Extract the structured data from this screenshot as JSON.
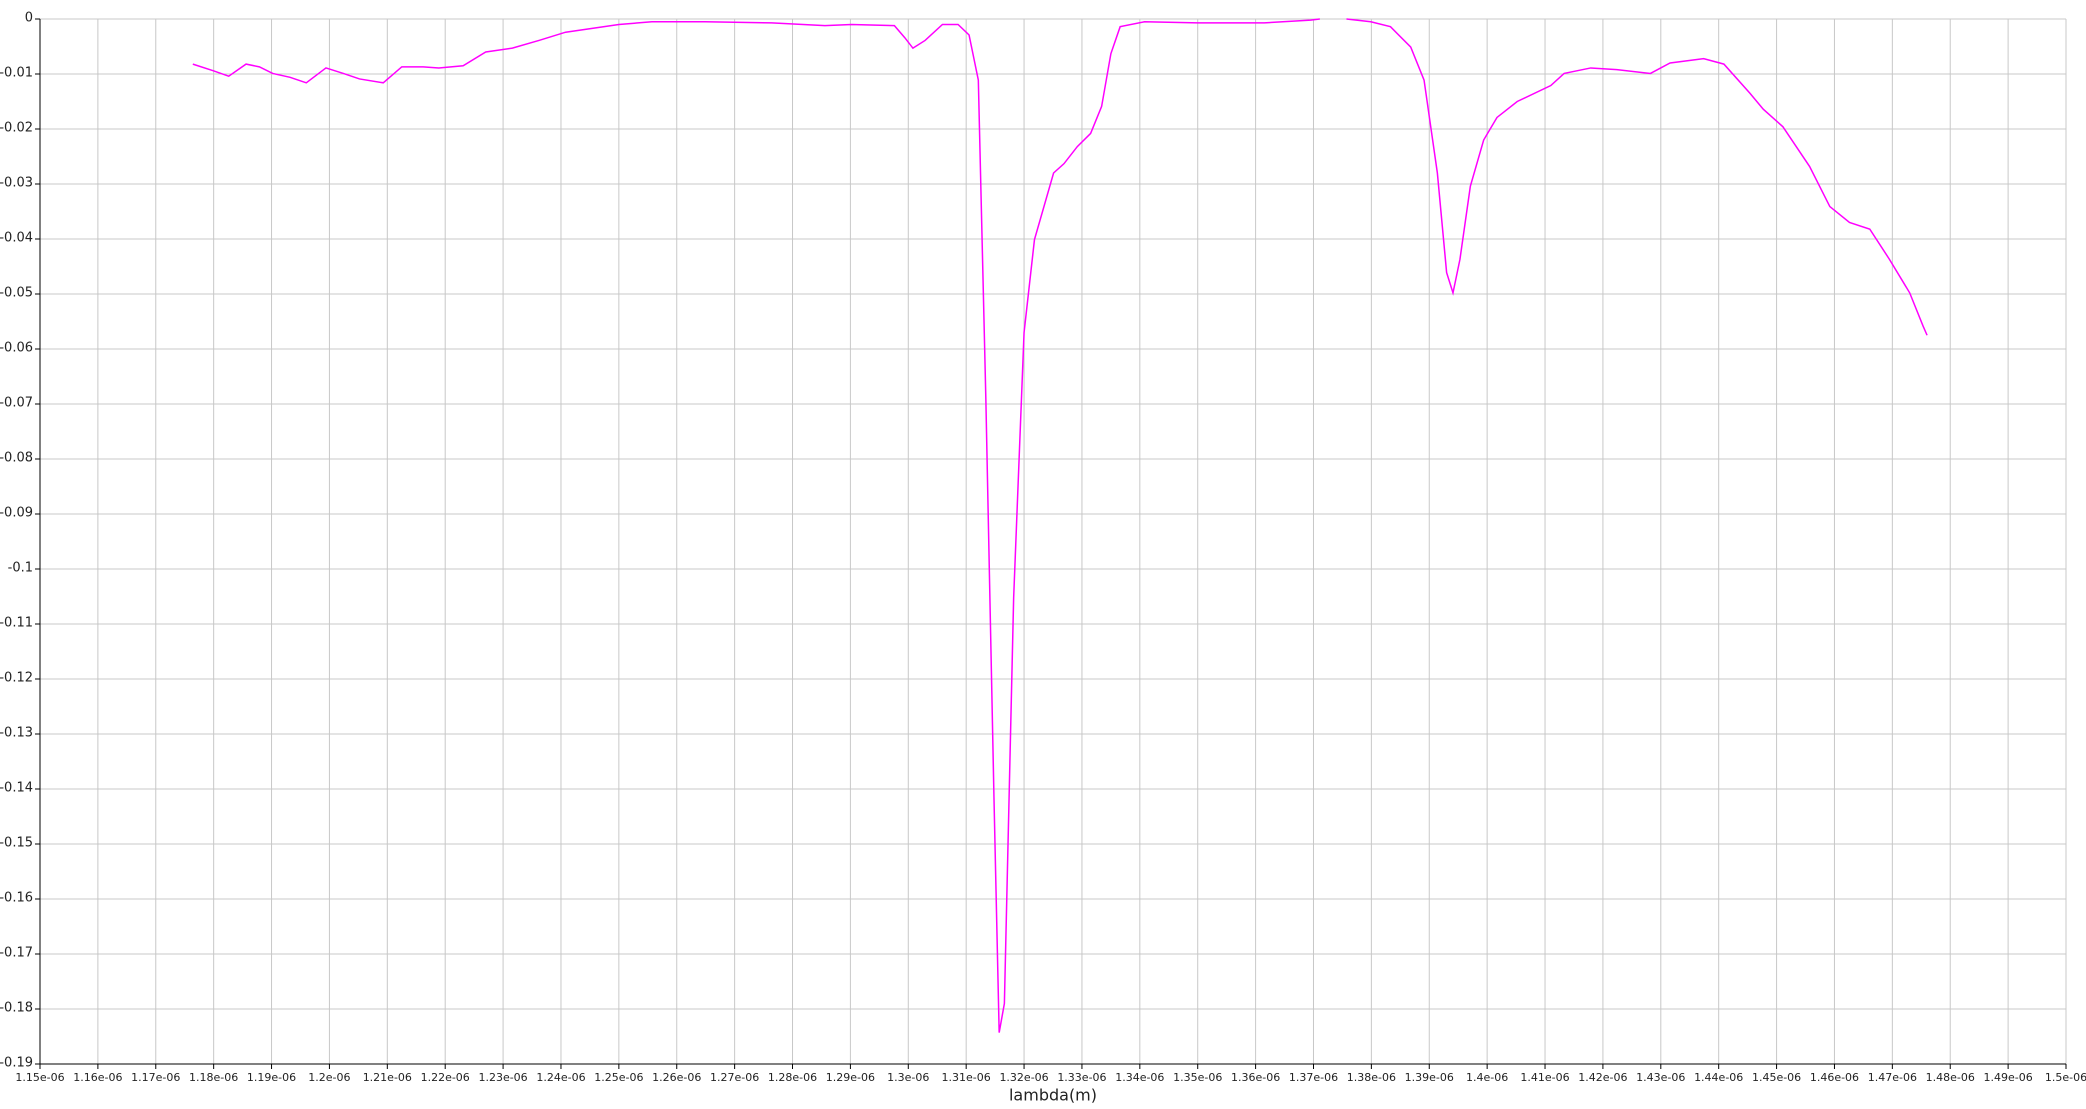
{
  "chart_data": {
    "type": "line",
    "x_label": "lambda(m)",
    "xlim": [
      1.15e-06,
      1.5e-06
    ],
    "ylim": [
      -0.19,
      0
    ],
    "grid": true,
    "xticks": [
      {
        "value": 1.15e-06,
        "label": "1.15e-06"
      },
      {
        "value": 1.16e-06,
        "label": "1.16e-06"
      },
      {
        "value": 1.17e-06,
        "label": "1.17e-06"
      },
      {
        "value": 1.18e-06,
        "label": "1.18e-06"
      },
      {
        "value": 1.19e-06,
        "label": "1.19e-06"
      },
      {
        "value": 1.2e-06,
        "label": "1.2e-06"
      },
      {
        "value": 1.21e-06,
        "label": "1.21e-06"
      },
      {
        "value": 1.22e-06,
        "label": "1.22e-06"
      },
      {
        "value": 1.23e-06,
        "label": "1.23e-06"
      },
      {
        "value": 1.24e-06,
        "label": "1.24e-06"
      },
      {
        "value": 1.25e-06,
        "label": "1.25e-06"
      },
      {
        "value": 1.26e-06,
        "label": "1.26e-06"
      },
      {
        "value": 1.27e-06,
        "label": "1.27e-06"
      },
      {
        "value": 1.28e-06,
        "label": "1.28e-06"
      },
      {
        "value": 1.29e-06,
        "label": "1.29e-06"
      },
      {
        "value": 1.3e-06,
        "label": "1.3e-06"
      },
      {
        "value": 1.31e-06,
        "label": "1.31e-06"
      },
      {
        "value": 1.32e-06,
        "label": "1.32e-06"
      },
      {
        "value": 1.33e-06,
        "label": "1.33e-06"
      },
      {
        "value": 1.34e-06,
        "label": "1.34e-06"
      },
      {
        "value": 1.35e-06,
        "label": "1.35e-06"
      },
      {
        "value": 1.36e-06,
        "label": "1.36e-06"
      },
      {
        "value": 1.37e-06,
        "label": "1.37e-06"
      },
      {
        "value": 1.38e-06,
        "label": "1.38e-06"
      },
      {
        "value": 1.39e-06,
        "label": "1.39e-06"
      },
      {
        "value": 1.4e-06,
        "label": "1.4e-06"
      },
      {
        "value": 1.41e-06,
        "label": "1.41e-06"
      },
      {
        "value": 1.42e-06,
        "label": "1.42e-06"
      },
      {
        "value": 1.43e-06,
        "label": "1.43e-06"
      },
      {
        "value": 1.44e-06,
        "label": "1.44e-06"
      },
      {
        "value": 1.45e-06,
        "label": "1.45e-06"
      },
      {
        "value": 1.46e-06,
        "label": "1.46e-06"
      },
      {
        "value": 1.47e-06,
        "label": "1.47e-06"
      },
      {
        "value": 1.48e-06,
        "label": "1.48e-06"
      },
      {
        "value": 1.49e-06,
        "label": "1.49e-06"
      },
      {
        "value": 1.5e-06,
        "label": "1.5e-06"
      }
    ],
    "yticks": [
      0,
      -0.01,
      -0.02,
      -0.03,
      -0.04,
      -0.05,
      -0.06,
      -0.07,
      -0.08,
      -0.09,
      -0.1,
      -0.11,
      -0.12,
      -0.13,
      -0.14,
      -0.15,
      -0.16,
      -0.17,
      -0.18,
      -0.19
    ],
    "series": [
      {
        "color": "#ff00ff",
        "x": [
          1.1764e-06,
          1.1799e-06,
          1.1826e-06,
          1.1856e-06,
          1.1879e-06,
          1.1902e-06,
          1.1932e-06,
          1.196e-06,
          1.1994e-06,
          1.2024e-06,
          1.2052e-06,
          1.2093e-06,
          1.2125e-06,
          1.2162e-06,
          1.2189e-06,
          1.2231e-06,
          1.227e-06,
          1.2316e-06,
          1.2362e-06,
          1.2408e-06,
          1.2454e-06,
          1.25e-06,
          1.2557e-06,
          1.2649e-06,
          1.2764e-06,
          1.2856e-06,
          1.2902e-06,
          1.2976e-06,
          1.2994e-06,
          1.3008e-06,
          1.3029e-06,
          1.3059e-06,
          1.3086e-06,
          1.3105e-06,
          1.3121e-06,
          1.3134e-06,
          1.3148e-06,
          1.3157e-06,
          1.3166e-06,
          1.3182e-06,
          1.32e-06,
          1.3218e-06,
          1.3251e-06,
          1.3269e-06,
          1.3292e-06,
          1.3315e-06,
          1.3334e-06,
          1.335e-06,
          1.3366e-06,
          1.3408e-06,
          1.35e-06,
          1.3615e-06,
          1.3695e-06,
          1.3711e-06,
          1.3734e-06,
          1.3757e-06,
          1.3799e-06,
          1.3833e-06,
          1.3868e-06,
          1.3891e-06,
          1.3914e-06,
          1.393e-06,
          1.3941e-06,
          1.3953e-06,
          1.3971e-06,
          1.3994e-06,
          1.4017e-06,
          1.4052e-06,
          1.411e-06,
          1.4133e-06,
          1.4179e-06,
          1.4224e-06,
          1.4282e-06,
          1.4316e-06,
          1.4374e-06,
          1.4409e-06,
          1.4454e-06,
          1.4477e-06,
          1.4511e-06,
          1.4557e-06,
          1.4592e-06,
          1.4626e-06,
          1.4661e-06,
          1.4695e-06,
          1.473e-06,
          1.4753e-06,
          1.476e-06
        ],
        "values": [
          -0.0082,
          -0.0094,
          -0.0104,
          -0.0082,
          -0.0087,
          -0.0099,
          -0.0106,
          -0.0116,
          -0.0089,
          -0.0099,
          -0.0109,
          -0.0116,
          -0.0087,
          -0.0087,
          -0.0089,
          -0.0085,
          -0.006,
          -0.0053,
          -0.0039,
          -0.0024,
          -0.0017,
          -0.001,
          -0.0005,
          -0.0005,
          -0.0007,
          -0.0012,
          -0.001,
          -0.0012,
          -0.0034,
          -0.0053,
          -0.0039,
          -0.001,
          -0.001,
          -0.0029,
          -0.0111,
          -0.0691,
          -0.1415,
          -0.1843,
          -0.179,
          -0.1053,
          -0.057,
          -0.0401,
          -0.028,
          -0.0263,
          -0.0232,
          -0.0208,
          -0.0159,
          -0.0063,
          -0.0014,
          -0.0005,
          -0.0007,
          -0.0007,
          -0.0002,
          0,
          null,
          0,
          -0.0005,
          -0.0014,
          -0.0051,
          -0.0111,
          -0.028,
          -0.0461,
          -0.0498,
          -0.0437,
          -0.0304,
          -0.022,
          -0.0179,
          -0.015,
          -0.0121,
          -0.0099,
          -0.0089,
          -0.0092,
          -0.0099,
          -0.008,
          -0.0072,
          -0.0082,
          -0.0135,
          -0.0164,
          -0.0196,
          -0.0268,
          -0.0341,
          -0.037,
          -0.0382,
          -0.0437,
          -0.0498,
          -0.0558,
          -0.0575
        ]
      }
    ]
  }
}
